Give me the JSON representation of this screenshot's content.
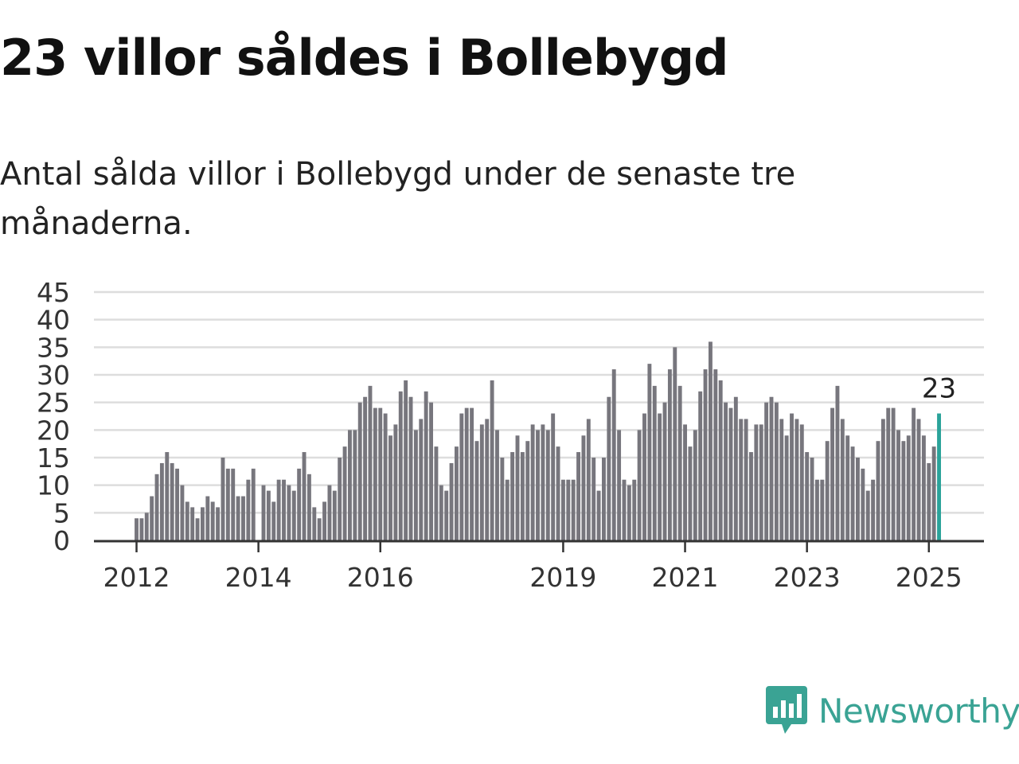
{
  "title": "23 villor såldes i Bollebygd",
  "subtitle": "Antal sålda villor i Bollebygd under de senaste tre månaderna.",
  "brand": {
    "name": "Newsworthy",
    "icon": "newsworthy-logo-icon",
    "color": "#3aa394"
  },
  "chart_data": {
    "type": "bar",
    "start": "2012-01",
    "x_tick_labels": [
      "2012",
      "2014",
      "2016",
      "2019",
      "2021",
      "2023",
      "2025"
    ],
    "y_tick_labels": [
      "0",
      "5",
      "10",
      "15",
      "20",
      "25",
      "30",
      "35",
      "40",
      "45"
    ],
    "ylim": [
      0,
      45
    ],
    "grid": true,
    "bar_color": "#77767d",
    "highlight_color": "#2aa39a",
    "highlight_label": "23",
    "values": [
      4,
      4,
      5,
      8,
      12,
      14,
      16,
      14,
      13,
      10,
      7,
      6,
      4,
      6,
      8,
      7,
      6,
      15,
      13,
      13,
      8,
      8,
      11,
      13,
      0,
      10,
      9,
      7,
      11,
      11,
      10,
      9,
      13,
      16,
      12,
      6,
      4,
      7,
      10,
      9,
      15,
      17,
      20,
      20,
      25,
      26,
      28,
      24,
      24,
      23,
      19,
      21,
      27,
      29,
      26,
      20,
      22,
      27,
      25,
      17,
      10,
      9,
      14,
      17,
      23,
      24,
      24,
      18,
      21,
      22,
      29,
      20,
      15,
      11,
      16,
      19,
      16,
      18,
      21,
      20,
      21,
      20,
      23,
      17,
      11,
      11,
      11,
      16,
      19,
      22,
      15,
      9,
      15,
      26,
      31,
      20,
      11,
      10,
      11,
      20,
      23,
      32,
      28,
      23,
      25,
      31,
      35,
      28,
      21,
      17,
      20,
      27,
      31,
      36,
      31,
      29,
      25,
      24,
      26,
      22,
      22,
      16,
      21,
      21,
      25,
      26,
      25,
      22,
      19,
      23,
      22,
      21,
      16,
      15,
      11,
      11,
      18,
      24,
      28,
      22,
      19,
      17,
      15,
      13,
      9,
      11,
      18,
      22,
      24,
      24,
      20,
      18,
      19,
      24,
      22,
      19,
      14,
      17,
      23
    ]
  }
}
